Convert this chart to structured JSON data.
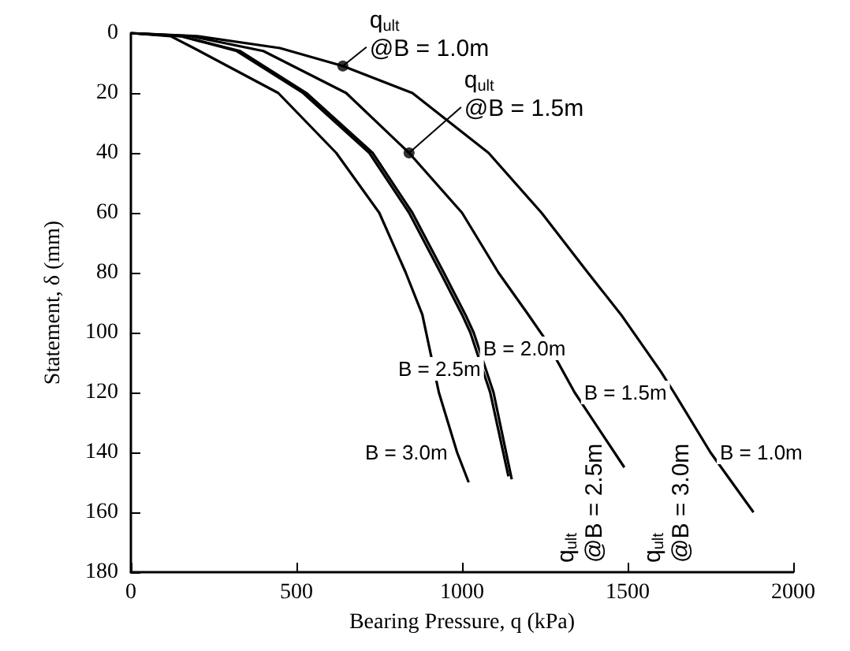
{
  "chart_data": {
    "type": "line",
    "xlabel": "Bearing Pressure, q (kPa)",
    "ylabel": "Statement, δ (mm)",
    "xlim": [
      0,
      2000
    ],
    "xticks": [
      0,
      500,
      1000,
      1500,
      2000
    ],
    "ylim": [
      180,
      0
    ],
    "yticks": [
      0,
      20,
      40,
      60,
      80,
      100,
      120,
      140,
      160,
      180
    ],
    "grid": false,
    "legend": false,
    "marker": "none",
    "line_style": "solid",
    "series": [
      {
        "name": "B = 1.0m",
        "color": "#000000",
        "x": [
          0,
          200,
          450,
          640,
          850,
          1080,
          1240,
          1380,
          1480,
          1600,
          1640,
          1750,
          1880
        ],
        "values": [
          0,
          1,
          5,
          11,
          20,
          40,
          60,
          80,
          94,
          113,
          120,
          140,
          160
        ]
      },
      {
        "name": "B = 1.5m",
        "color": "#000000",
        "x": [
          0,
          180,
          400,
          650,
          840,
          1000,
          1110,
          1200,
          1250,
          1340,
          1490
        ],
        "values": [
          0,
          1,
          6,
          20,
          40,
          60,
          80,
          94,
          102,
          120,
          145
        ]
      },
      {
        "name": "B = 2.0m",
        "color": "#000000",
        "x": [
          0,
          150,
          330,
          530,
          730,
          850,
          945,
          1010,
          1035,
          1095,
          1150
        ],
        "values": [
          0,
          1,
          6,
          20,
          40,
          60,
          80,
          94,
          100,
          120,
          149
        ]
      },
      {
        "name": "B = 2.5m",
        "color": "#000000",
        "x": [
          0,
          150,
          320,
          520,
          720,
          840,
          935,
          1000,
          1025,
          1085,
          1140
        ],
        "values": [
          0,
          1,
          6,
          20,
          40,
          60,
          80,
          94,
          100,
          120,
          148
        ]
      },
      {
        "name": "B = 3.0m",
        "color": "#000000",
        "x": [
          0,
          120,
          190,
          445,
          620,
          750,
          830,
          880,
          930,
          985,
          1020
        ],
        "values": [
          0,
          1,
          5,
          20,
          40,
          60,
          80,
          94,
          120,
          140,
          150
        ]
      }
    ],
    "annotations": [
      {
        "text": "q$_{ult}$\n@B = 1.0m",
        "x": 640,
        "y": 11
      },
      {
        "text": "q$_{ult}$\n@B = 1.5m",
        "x": 840,
        "y": 40
      },
      "q$_{ult}$\n@B = 2.5m",
      "q$_{ult}$\n@B = 3.0m"
    ]
  }
}
